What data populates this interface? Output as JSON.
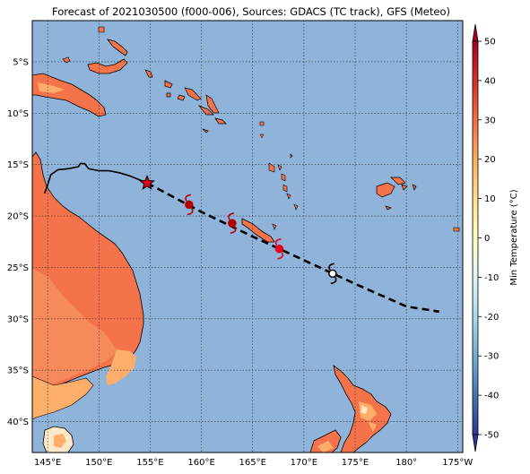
{
  "title": "Forecast of 2021030500 (f000-006), Sources: GDACS (TC track), GFS (Meteo)",
  "map": {
    "lon_range": [
      143.5,
      185.5
    ],
    "lat_range": [
      -43,
      -1
    ],
    "lon_ticks": [
      {
        "value": 145,
        "label": "145°E"
      },
      {
        "value": 150,
        "label": "150°E"
      },
      {
        "value": 155,
        "label": "155°E"
      },
      {
        "value": 160,
        "label": "160°E"
      },
      {
        "value": 165,
        "label": "165°E"
      },
      {
        "value": 170,
        "label": "170°E"
      },
      {
        "value": 175,
        "label": "175°E"
      },
      {
        "value": 180,
        "label": "180°"
      },
      {
        "value": 185,
        "label": "175°W"
      }
    ],
    "lat_ticks": [
      {
        "value": -5,
        "label": "5°S"
      },
      {
        "value": -10,
        "label": "10°S"
      },
      {
        "value": -15,
        "label": "15°S"
      },
      {
        "value": -20,
        "label": "20°S"
      },
      {
        "value": -25,
        "label": "25°S"
      },
      {
        "value": -30,
        "label": "30°S"
      },
      {
        "value": -35,
        "label": "35°S"
      },
      {
        "value": -40,
        "label": "40°S"
      }
    ],
    "grid": "dotted",
    "ocean_color": "#8fb3d9",
    "land_colors": [
      "#f4734a",
      "#fdae6b",
      "#fee8c8"
    ]
  },
  "track": {
    "past": [
      [
        144.7,
        -17.8
      ],
      [
        145.0,
        -17.0
      ],
      [
        145.3,
        -16.0
      ],
      [
        146.0,
        -15.5
      ],
      [
        147.0,
        -15.4
      ],
      [
        148.0,
        -15.2
      ],
      [
        148.2,
        -14.9
      ],
      [
        148.6,
        -14.9
      ],
      [
        149.0,
        -15.4
      ],
      [
        150.0,
        -15.6
      ],
      [
        151.0,
        -15.6
      ],
      [
        152.0,
        -15.8
      ],
      [
        153.0,
        -16.1
      ],
      [
        154.0,
        -16.5
      ],
      [
        154.7,
        -16.8
      ]
    ],
    "forecast": [
      [
        154.7,
        -16.8
      ],
      [
        160.0,
        -19.6
      ],
      [
        165.0,
        -22.0
      ],
      [
        170.0,
        -24.3
      ],
      [
        175.0,
        -26.6
      ],
      [
        180.0,
        -28.8
      ],
      [
        183.2,
        -29.3
      ]
    ],
    "current_position": [
      154.7,
      -16.8
    ],
    "cyclone_markers": [
      {
        "lon": 158.8,
        "lat": -18.9,
        "color": "#b40000"
      },
      {
        "lon": 163.0,
        "lat": -20.7,
        "color": "#b40000"
      },
      {
        "lon": 167.6,
        "lat": -23.2,
        "color": "#e8001e"
      },
      {
        "lon": 172.8,
        "lat": -25.6,
        "color": "#000000"
      }
    ]
  },
  "colorbar": {
    "label": "Min Temperature (°C)",
    "ticks": [
      50,
      40,
      30,
      20,
      10,
      0,
      -10,
      -20,
      -30,
      -40,
      -50
    ],
    "colors": [
      "#313695",
      "#4575b4",
      "#74add1",
      "#abd9e9",
      "#e0f3f8",
      "#ffffbf",
      "#fee090",
      "#fdae61",
      "#f46d43",
      "#d73027",
      "#a50026"
    ]
  }
}
